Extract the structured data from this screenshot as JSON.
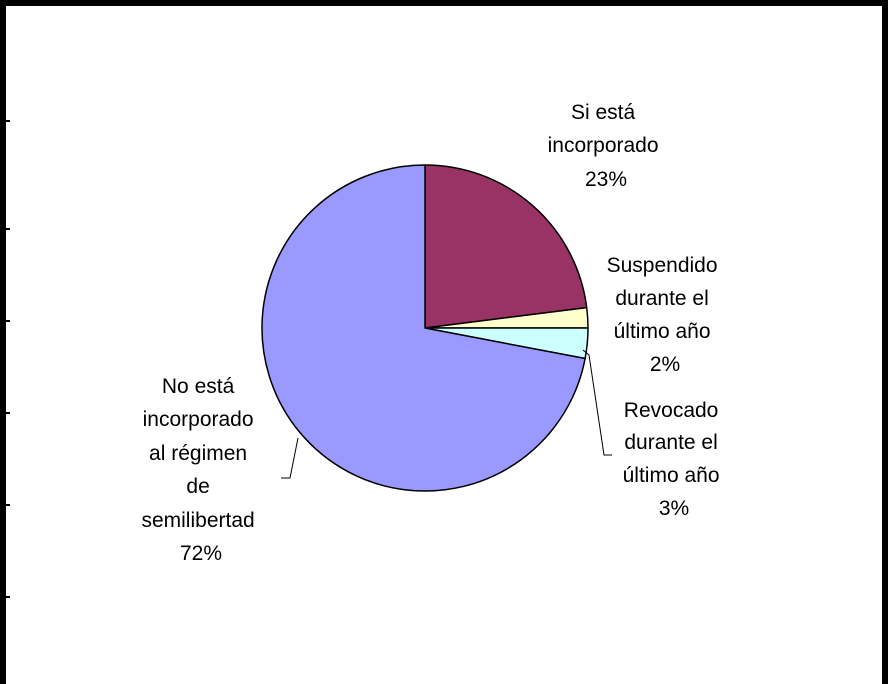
{
  "chart_data": {
    "type": "pie",
    "title": "",
    "slices": [
      {
        "line1": "Si está",
        "line2": "incorporado",
        "line3": "",
        "line4": "",
        "line5": "",
        "percent_label": "23%",
        "value": 23,
        "color": "#993366"
      },
      {
        "line1": "Suspendido",
        "line2": "durante el",
        "line3": "último año",
        "line4": "",
        "line5": "",
        "percent_label": "2%",
        "value": 2,
        "color": "#FFFFCC"
      },
      {
        "line1": "Revocado",
        "line2": "durante el",
        "line3": "último año",
        "line4": "",
        "line5": "",
        "percent_label": "3%",
        "value": 3,
        "color": "#CCFFFF"
      },
      {
        "line1": "No está",
        "line2": "incorporado",
        "line3": "al régimen",
        "line4": "de",
        "line5": "semilibertad",
        "percent_label": "72%",
        "value": 72,
        "color": "#9999FF"
      }
    ],
    "start_angle": "12 o'clock",
    "direction": "clockwise",
    "legend": "none"
  }
}
